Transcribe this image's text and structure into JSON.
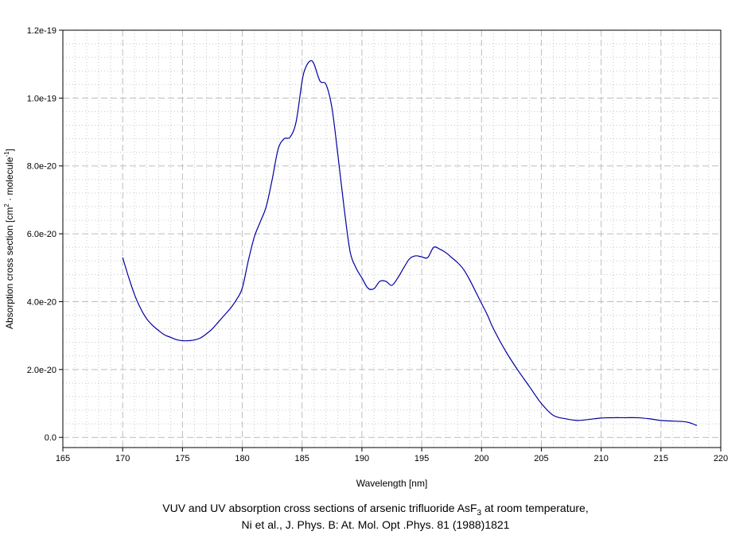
{
  "chart_data": {
    "type": "line",
    "xlabel": "Wavelength [nm]",
    "ylabel_prefix": "Absorption cross section [cm",
    "ylabel_sup1": "2",
    "ylabel_mid": " · molecule",
    "ylabel_sup2": "-1",
    "ylabel_suffix": "]",
    "xlim": [
      165,
      220
    ],
    "ylim": [
      -3e-21,
      1.2e-19
    ],
    "x_ticks": [
      165,
      170,
      175,
      180,
      185,
      190,
      195,
      200,
      205,
      210,
      215,
      220
    ],
    "x_tick_labels": [
      "165",
      "170",
      "175",
      "180",
      "185",
      "190",
      "195",
      "200",
      "205",
      "210",
      "215",
      "220"
    ],
    "y_ticks": [
      0,
      2e-20,
      4e-20,
      6e-20,
      8e-20,
      1e-19,
      1.2e-19
    ],
    "y_tick_labels": [
      "0.0",
      "2.0e-20",
      "4.0e-20",
      "6.0e-20",
      "8.0e-20",
      "1.0e-19",
      "1.2e-19"
    ],
    "grid": true,
    "line_color": "#0000a0",
    "series": [
      {
        "x": [
          170,
          170.5,
          171,
          171.5,
          172,
          172.5,
          173,
          173.5,
          174,
          174.5,
          175,
          175.5,
          176,
          176.5,
          177,
          177.5,
          178,
          178.5,
          179,
          179.5,
          180,
          180.5,
          181,
          181.5,
          182,
          182.5,
          183,
          183.5,
          184,
          184.5,
          185,
          185.3,
          185.7,
          186,
          186.5,
          187,
          187.5,
          188,
          188.5,
          189,
          189.5,
          190,
          190.5,
          191,
          191.5,
          192,
          192.5,
          193,
          193.5,
          194,
          194.5,
          195,
          195.5,
          196,
          196.5,
          197,
          197.5,
          198,
          198.5,
          199,
          199.5,
          200,
          200.5,
          201,
          202,
          203,
          204,
          205,
          206,
          207,
          208,
          209,
          210,
          211,
          212,
          213,
          214,
          215,
          216,
          217,
          217.5,
          218
        ],
        "y": [
          5.3e-20,
          4.72e-20,
          4.2e-20,
          3.8e-20,
          3.5e-20,
          3.3e-20,
          3.15e-20,
          3.02e-20,
          2.95e-20,
          2.88e-20,
          2.85e-20,
          2.85e-20,
          2.87e-20,
          2.93e-20,
          3.05e-20,
          3.2e-20,
          3.4e-20,
          3.6e-20,
          3.8e-20,
          4.05e-20,
          4.4e-20,
          5.2e-20,
          5.9e-20,
          6.35e-20,
          6.8e-20,
          7.6e-20,
          8.5e-20,
          8.8e-20,
          8.85e-20,
          9.3e-20,
          1.05e-19,
          1.09e-19,
          1.11e-19,
          1.1e-19,
          1.05e-19,
          1.04e-19,
          9.7e-20,
          8.3e-20,
          6.8e-20,
          5.5e-20,
          5e-20,
          4.7e-20,
          4.4e-20,
          4.38e-20,
          4.6e-20,
          4.6e-20,
          4.48e-20,
          4.7e-20,
          5e-20,
          5.27e-20,
          5.35e-20,
          5.32e-20,
          5.3e-20,
          5.6e-20,
          5.55e-20,
          5.45e-20,
          5.3e-20,
          5.15e-20,
          4.95e-20,
          4.65e-20,
          4.3e-20,
          3.95e-20,
          3.6e-20,
          3.2e-20,
          2.55e-20,
          2e-20,
          1.5e-20,
          1e-20,
          6.5e-21,
          5.5e-21,
          5e-21,
          5.3e-21,
          5.7e-21,
          5.8e-21,
          5.8e-21,
          5.8e-21,
          5.5e-21,
          5e-21,
          4.8e-21,
          4.6e-21,
          4.2e-21,
          3.5e-21
        ]
      }
    ]
  },
  "caption": {
    "line1_a": "VUV and UV absorption cross sections of arsenic trifluoride AsF",
    "line1_sub": "3",
    "line1_b": " at room temperature,",
    "line2": "Ni et al., J. Phys. B: At. Mol. Opt .Phys. 81 (1988)1821"
  }
}
